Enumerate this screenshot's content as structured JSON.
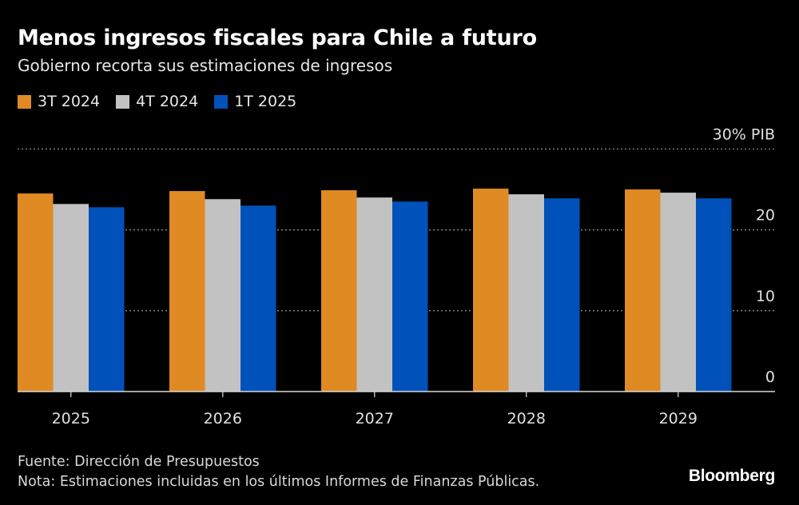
{
  "chart_data": {
    "type": "bar",
    "title": "Menos ingresos fiscales para Chile a futuro",
    "subtitle": "Gobierno recorta sus estimaciones de ingresos",
    "categories": [
      "2025",
      "2026",
      "2027",
      "2028",
      "2029"
    ],
    "series": [
      {
        "name": "3T 2024",
        "color": "#e08a24",
        "values": [
          24.5,
          24.8,
          24.9,
          25.1,
          25.0
        ]
      },
      {
        "name": "4T 2024",
        "color": "#c2c2c2",
        "values": [
          23.2,
          23.8,
          24.0,
          24.4,
          24.6
        ]
      },
      {
        "name": "1T 2025",
        "color": "#0051b9",
        "values": [
          22.8,
          23.0,
          23.5,
          23.9,
          23.9
        ]
      }
    ],
    "ylim": [
      0,
      30
    ],
    "yticks": [
      "0",
      "10",
      "20",
      "30% PIB"
    ],
    "ytick_values": [
      0,
      10,
      20,
      30
    ],
    "grid": true,
    "legend_position": "top-left",
    "y_axis_side": "right"
  },
  "footer": {
    "source": "Fuente: Dirección de Presupuestos",
    "note": "Nota: Estimaciones incluidas en los últimos Informes de Finanzas Públicas."
  },
  "brand": "Bloomberg"
}
